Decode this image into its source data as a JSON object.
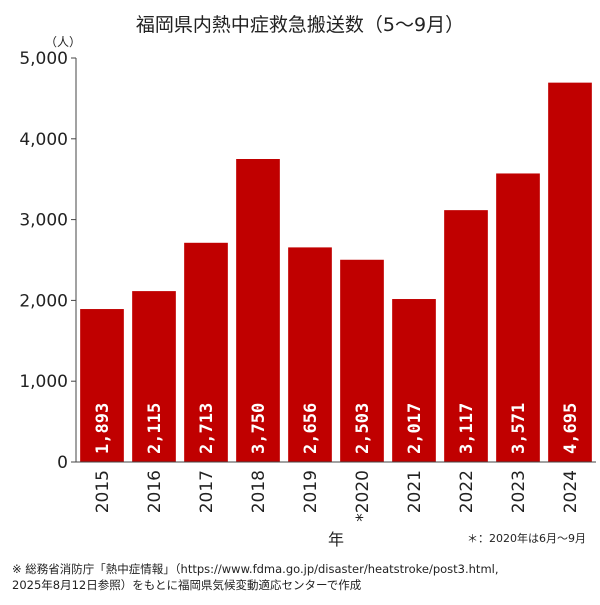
{
  "chart_data": {
    "type": "bar",
    "title": "福岡県内熱中症救急搬送数（5～9月）",
    "unit_label": "（人）",
    "xlabel": "年",
    "ylabel": "",
    "ylim": [
      0,
      5000
    ],
    "yticks": [
      0,
      1000,
      2000,
      3000,
      4000,
      5000
    ],
    "ytick_labels": [
      "0",
      "1,000",
      "2,000",
      "3,000",
      "4,000",
      "5,000"
    ],
    "categories": [
      "2015",
      "2016",
      "2017",
      "2018",
      "2019",
      "*2020",
      "2021",
      "2022",
      "2023",
      "2024"
    ],
    "values": [
      1893,
      2115,
      2713,
      3750,
      2656,
      2503,
      2017,
      3117,
      3571,
      4695
    ],
    "value_labels": [
      "1,893",
      "2,115",
      "2,713",
      "3,750",
      "2,656",
      "2,503",
      "2,017",
      "3,117",
      "3,571",
      "4,695"
    ],
    "bar_color": "#c00000",
    "label_color": "#ffffff",
    "grid": false,
    "legend": "none"
  },
  "note": "＊：2020年は6月～9月",
  "source_line1": "※ 総務省消防庁「熱中症情報」（https://www.fdma.go.jp/disaster/heatstroke/post3.html,",
  "source_line2": "2025年8月12日参照）をもとに福岡県気候変動適応センターで作成"
}
